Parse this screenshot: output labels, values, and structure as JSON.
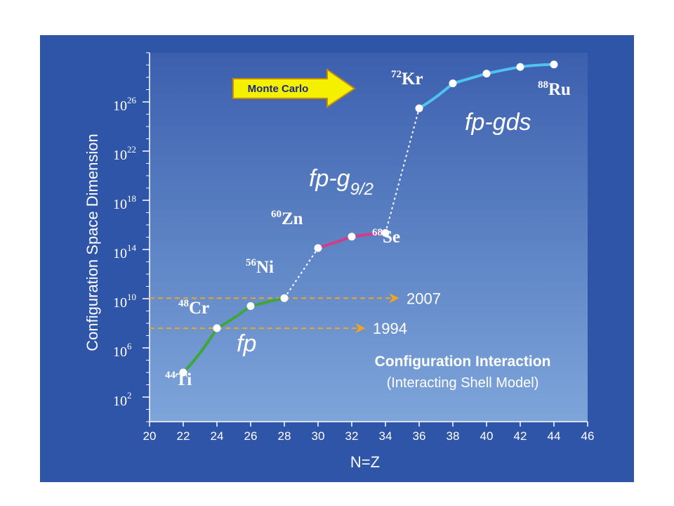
{
  "chart_data": {
    "type": "line",
    "xlabel": "N=Z",
    "ylabel": "Configuration Space Dimension",
    "y_scale": "log",
    "xlim": [
      20,
      46
    ],
    "x_ticks": [
      "20",
      "22",
      "24",
      "26",
      "28",
      "30",
      "32",
      "34",
      "36",
      "38",
      "40",
      "42",
      "44",
      "46"
    ],
    "y_ticks": [
      {
        "base": "10",
        "exp": "2",
        "value": 100.0
      },
      {
        "base": "10",
        "exp": "6",
        "value": 1000000.0
      },
      {
        "base": "10",
        "exp": "10",
        "value": 10000000000.0
      },
      {
        "base": "10",
        "exp": "14",
        "value": 100000000000000.0
      },
      {
        "base": "10",
        "exp": "18",
        "value": 1e+18
      },
      {
        "base": "10",
        "exp": "22",
        "value": 1e+22
      },
      {
        "base": "10",
        "exp": "26",
        "value": 1e+26
      }
    ],
    "ylim": [
      1.0,
      1e+30
    ],
    "series": [
      {
        "name": "fp",
        "color": "#3fa63a",
        "x": [
          22,
          24,
          26,
          28
        ],
        "y": [
          10000.0,
          40000000.0,
          2500000000.0,
          11000000000.0
        ]
      },
      {
        "name": "fp-g9/2",
        "color": "#d43c8a",
        "x": [
          30,
          32,
          34
        ],
        "y": [
          130000000000000.0,
          1100000000000000.0,
          2200000000000000.0
        ]
      },
      {
        "name": "fp-gds",
        "color": "#4fc3ee",
        "x": [
          36,
          38,
          40,
          42,
          44
        ],
        "y": [
          3e+25,
          3.2e+27,
          2e+28,
          7e+28,
          1.1e+29
        ]
      }
    ],
    "connectors": [
      {
        "from": [
          28,
          11000000000.0
        ],
        "to": [
          30,
          130000000000000.0
        ]
      },
      {
        "from": [
          34,
          2200000000000000.0
        ],
        "to": [
          36,
          3e+25
        ]
      }
    ],
    "nuclei": [
      {
        "mass": "44",
        "symbol": "Ti"
      },
      {
        "mass": "48",
        "symbol": "Cr"
      },
      {
        "mass": "56",
        "symbol": "Ni"
      },
      {
        "mass": "60",
        "symbol": "Zn"
      },
      {
        "mass": "68",
        "symbol": "Se"
      },
      {
        "mass": "72",
        "symbol": "Kr"
      },
      {
        "mass": "88",
        "symbol": "Ru"
      }
    ],
    "region_labels": {
      "fp": "fp",
      "fpg_main": "fp-g",
      "fpg_sub": "9/2",
      "fpgds": "fp-gds"
    },
    "milestones": [
      {
        "year": "2007",
        "y": 11000000000.0,
        "x_end": 36
      },
      {
        "year": "1994",
        "y": 40000000.0,
        "x_end": 34
      }
    ],
    "milestone_color": "#f2a41c",
    "monte_carlo_label": "Monte Carlo",
    "monte_carlo_color": "#f4f000",
    "ci_title": "Configuration Interaction",
    "ci_subtitle": "(Interacting Shell Model)"
  }
}
